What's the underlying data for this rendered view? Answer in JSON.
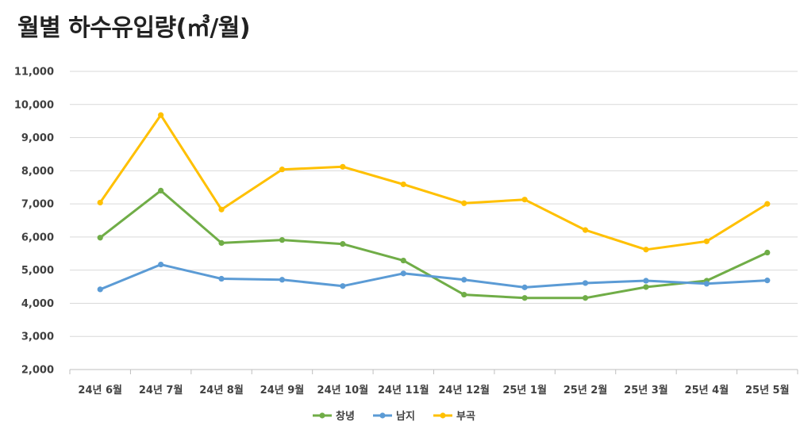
{
  "chart_data": {
    "type": "line",
    "title": "월별 하수유입량(㎥/월)",
    "xlabel": "",
    "ylabel": "",
    "ylim": [
      2000,
      11000
    ],
    "ytick_step": 1000,
    "grid": true,
    "legend_position": "bottom",
    "categories": [
      "24년 6월",
      "24년 7월",
      "24년 8월",
      "24년 9월",
      "24년 10월",
      "24년 11월",
      "24년 12월",
      "25년 1월",
      "25년 2월",
      "25년 3월",
      "25년 4월",
      "25년 5월"
    ],
    "yticks": [
      "2,000",
      "3,000",
      "4,000",
      "5,000",
      "6,000",
      "7,000",
      "8,000",
      "9,000",
      "10,000",
      "11,000"
    ],
    "series": [
      {
        "name": "창녕",
        "color": "#70ad47",
        "values": [
          5980,
          7400,
          5820,
          5910,
          5790,
          5290,
          4260,
          4160,
          4160,
          4490,
          4680,
          5530
        ]
      },
      {
        "name": "남지",
        "color": "#5b9bd5",
        "values": [
          4420,
          5170,
          4740,
          4710,
          4520,
          4900,
          4710,
          4480,
          4610,
          4680,
          4590,
          4690
        ]
      },
      {
        "name": "부곡",
        "color": "#ffc000",
        "values": [
          7040,
          9680,
          6830,
          8040,
          8120,
          7590,
          7020,
          7130,
          6210,
          5620,
          5870,
          7000
        ]
      }
    ]
  }
}
